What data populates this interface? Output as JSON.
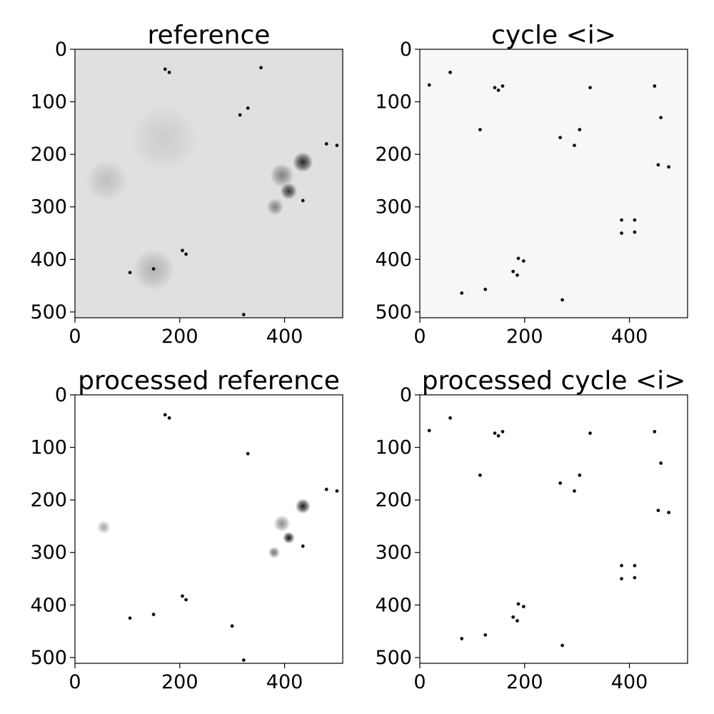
{
  "chart_data": [
    {
      "type": "heatmap",
      "title": "reference",
      "colormap": "greys",
      "xlim": [
        0,
        511
      ],
      "ylim": [
        511,
        0
      ],
      "xticks": [
        0,
        200,
        400
      ],
      "yticks": [
        0,
        100,
        200,
        300,
        400,
        500
      ],
      "background_intensity": 0.12,
      "blobs": [
        {
          "x": 435,
          "y": 215,
          "value": 0.85,
          "spread": 12
        },
        {
          "x": 408,
          "y": 270,
          "value": 0.8,
          "spread": 10
        },
        {
          "x": 395,
          "y": 240,
          "value": 0.5,
          "spread": 14
        },
        {
          "x": 382,
          "y": 300,
          "value": 0.5,
          "spread": 10
        },
        {
          "x": 170,
          "y": 170,
          "value": 0.2,
          "spread": 40
        },
        {
          "x": 60,
          "y": 250,
          "value": 0.25,
          "spread": 25
        },
        {
          "x": 150,
          "y": 420,
          "value": 0.3,
          "spread": 25
        }
      ],
      "spots": [
        {
          "x": 172,
          "y": 38
        },
        {
          "x": 180,
          "y": 44
        },
        {
          "x": 330,
          "y": 112
        },
        {
          "x": 480,
          "y": 180
        },
        {
          "x": 500,
          "y": 183
        },
        {
          "x": 435,
          "y": 288
        },
        {
          "x": 205,
          "y": 383
        },
        {
          "x": 212,
          "y": 390
        },
        {
          "x": 105,
          "y": 425
        },
        {
          "x": 150,
          "y": 418
        },
        {
          "x": 322,
          "y": 505
        },
        {
          "x": 355,
          "y": 35
        },
        {
          "x": 315,
          "y": 125
        }
      ]
    },
    {
      "type": "heatmap",
      "title": "cycle <i>",
      "colormap": "greys",
      "xlim": [
        0,
        511
      ],
      "ylim": [
        511,
        0
      ],
      "xticks": [
        0,
        200,
        400
      ],
      "yticks": [
        0,
        100,
        200,
        300,
        400,
        500
      ],
      "background_intensity": 0.03,
      "blobs": [],
      "spots": [
        {
          "x": 18,
          "y": 68
        },
        {
          "x": 58,
          "y": 44
        },
        {
          "x": 143,
          "y": 73
        },
        {
          "x": 150,
          "y": 78
        },
        {
          "x": 158,
          "y": 70
        },
        {
          "x": 115,
          "y": 153
        },
        {
          "x": 268,
          "y": 168
        },
        {
          "x": 305,
          "y": 153
        },
        {
          "x": 325,
          "y": 73
        },
        {
          "x": 295,
          "y": 183
        },
        {
          "x": 455,
          "y": 220
        },
        {
          "x": 475,
          "y": 224
        },
        {
          "x": 385,
          "y": 325
        },
        {
          "x": 410,
          "y": 325
        },
        {
          "x": 385,
          "y": 350
        },
        {
          "x": 410,
          "y": 348
        },
        {
          "x": 188,
          "y": 398
        },
        {
          "x": 198,
          "y": 403
        },
        {
          "x": 178,
          "y": 423
        },
        {
          "x": 186,
          "y": 430
        },
        {
          "x": 80,
          "y": 464
        },
        {
          "x": 125,
          "y": 457
        },
        {
          "x": 272,
          "y": 477
        },
        {
          "x": 448,
          "y": 70
        },
        {
          "x": 460,
          "y": 130
        }
      ]
    },
    {
      "type": "heatmap",
      "title": "processed reference",
      "colormap": "greys",
      "xlim": [
        0,
        511
      ],
      "ylim": [
        511,
        0
      ],
      "xticks": [
        0,
        200,
        400
      ],
      "yticks": [
        0,
        100,
        200,
        300,
        400,
        500
      ],
      "background_intensity": 0.0,
      "blobs": [
        {
          "x": 435,
          "y": 212,
          "value": 0.9,
          "spread": 9
        },
        {
          "x": 408,
          "y": 272,
          "value": 0.95,
          "spread": 7
        },
        {
          "x": 395,
          "y": 245,
          "value": 0.45,
          "spread": 10
        },
        {
          "x": 380,
          "y": 300,
          "value": 0.55,
          "spread": 7
        },
        {
          "x": 55,
          "y": 252,
          "value": 0.35,
          "spread": 8
        }
      ],
      "spots": [
        {
          "x": 172,
          "y": 38
        },
        {
          "x": 180,
          "y": 44
        },
        {
          "x": 330,
          "y": 112
        },
        {
          "x": 480,
          "y": 180
        },
        {
          "x": 500,
          "y": 183
        },
        {
          "x": 435,
          "y": 288
        },
        {
          "x": 205,
          "y": 383
        },
        {
          "x": 212,
          "y": 390
        },
        {
          "x": 105,
          "y": 425
        },
        {
          "x": 150,
          "y": 418
        },
        {
          "x": 322,
          "y": 505
        },
        {
          "x": 300,
          "y": 440
        }
      ]
    },
    {
      "type": "heatmap",
      "title": "processed cycle <i>",
      "colormap": "greys",
      "xlim": [
        0,
        511
      ],
      "ylim": [
        511,
        0
      ],
      "xticks": [
        0,
        200,
        400
      ],
      "yticks": [
        0,
        100,
        200,
        300,
        400,
        500
      ],
      "background_intensity": 0.0,
      "blobs": [],
      "spots": [
        {
          "x": 18,
          "y": 68
        },
        {
          "x": 58,
          "y": 44
        },
        {
          "x": 143,
          "y": 73
        },
        {
          "x": 150,
          "y": 78
        },
        {
          "x": 158,
          "y": 70
        },
        {
          "x": 115,
          "y": 153
        },
        {
          "x": 268,
          "y": 168
        },
        {
          "x": 305,
          "y": 153
        },
        {
          "x": 325,
          "y": 73
        },
        {
          "x": 295,
          "y": 183
        },
        {
          "x": 455,
          "y": 220
        },
        {
          "x": 475,
          "y": 224
        },
        {
          "x": 385,
          "y": 325
        },
        {
          "x": 410,
          "y": 325
        },
        {
          "x": 385,
          "y": 350
        },
        {
          "x": 410,
          "y": 348
        },
        {
          "x": 188,
          "y": 398
        },
        {
          "x": 198,
          "y": 403
        },
        {
          "x": 178,
          "y": 423
        },
        {
          "x": 186,
          "y": 430
        },
        {
          "x": 80,
          "y": 464
        },
        {
          "x": 125,
          "y": 457
        },
        {
          "x": 272,
          "y": 477
        },
        {
          "x": 448,
          "y": 70
        },
        {
          "x": 460,
          "y": 130
        }
      ]
    }
  ]
}
